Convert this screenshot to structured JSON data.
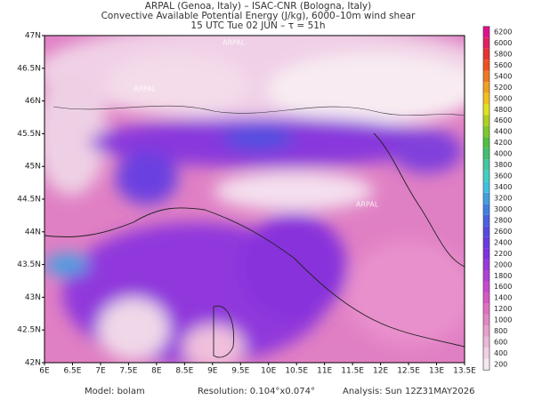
{
  "header": {
    "lines": [
      "ARPAL (Genoa, Italy)  –  ISAC-CNR (Bologna, Italy)",
      "Convective Available Potential Energy (J/kg), 6000–10m wind shear",
      "15 UTC Tue 02 JUN  –  τ = 51h"
    ]
  },
  "map": {
    "lon_range": [
      6,
      13.5
    ],
    "lat_range": [
      42,
      47
    ],
    "lat_ticks": [
      {
        "value": 42,
        "label": "42N"
      },
      {
        "value": 42.5,
        "label": "42.5N"
      },
      {
        "value": 43,
        "label": "43N"
      },
      {
        "value": 43.5,
        "label": "43.5N"
      },
      {
        "value": 44,
        "label": "44N"
      },
      {
        "value": 44.5,
        "label": "44.5N"
      },
      {
        "value": 45,
        "label": "45N"
      },
      {
        "value": 45.5,
        "label": "45.5N"
      },
      {
        "value": 46,
        "label": "46N"
      },
      {
        "value": 46.5,
        "label": "46.5N"
      },
      {
        "value": 47,
        "label": "47N"
      }
    ],
    "lon_ticks": [
      {
        "value": 6,
        "label": "6E"
      },
      {
        "value": 6.5,
        "label": "6.5E"
      },
      {
        "value": 7,
        "label": "7E"
      },
      {
        "value": 7.5,
        "label": "7.5E"
      },
      {
        "value": 8,
        "label": "8E"
      },
      {
        "value": 8.5,
        "label": "8.5E"
      },
      {
        "value": 9,
        "label": "9E"
      },
      {
        "value": 9.5,
        "label": "9.5E"
      },
      {
        "value": 10,
        "label": "10E"
      },
      {
        "value": 10.5,
        "label": "10.5E"
      },
      {
        "value": 11,
        "label": "11E"
      },
      {
        "value": 11.5,
        "label": "11.5E"
      },
      {
        "value": 12,
        "label": "12E"
      },
      {
        "value": 12.5,
        "label": "12.5E"
      },
      {
        "value": 13,
        "label": "13E"
      },
      {
        "value": 13.5,
        "label": "13.5E"
      }
    ],
    "watermark": "ARPAL"
  },
  "colorbar": {
    "levels": [
      200,
      400,
      600,
      800,
      1000,
      1200,
      1400,
      1600,
      1800,
      2000,
      2200,
      2400,
      2600,
      2800,
      3000,
      3200,
      3400,
      3600,
      3800,
      4000,
      4200,
      4400,
      4600,
      4800,
      5000,
      5200,
      5400,
      5600,
      5800,
      6000,
      6200
    ],
    "colors": [
      "#f4e8f0",
      "#f0d0e4",
      "#eab8d8",
      "#e6a0cc",
      "#e088c4",
      "#e070c0",
      "#d858c4",
      "#c848d0",
      "#b040d8",
      "#9838dc",
      "#8030e0",
      "#6a38e0",
      "#5848e0",
      "#4a60e0",
      "#4080e0",
      "#40a0e0",
      "#40c0e0",
      "#40d0c0",
      "#40c8a0",
      "#40c070",
      "#50c040",
      "#80c830",
      "#b0d020",
      "#e0e020",
      "#f0c020",
      "#f0a020",
      "#f07820",
      "#f05020",
      "#e83030",
      "#e02060",
      "#e01090"
    ]
  },
  "footer": {
    "model": "Model: bolam",
    "resolution": "Resolution: 0.104°x0.074°",
    "analysis": "Analysis: Sun 12Z31MAY2026"
  }
}
